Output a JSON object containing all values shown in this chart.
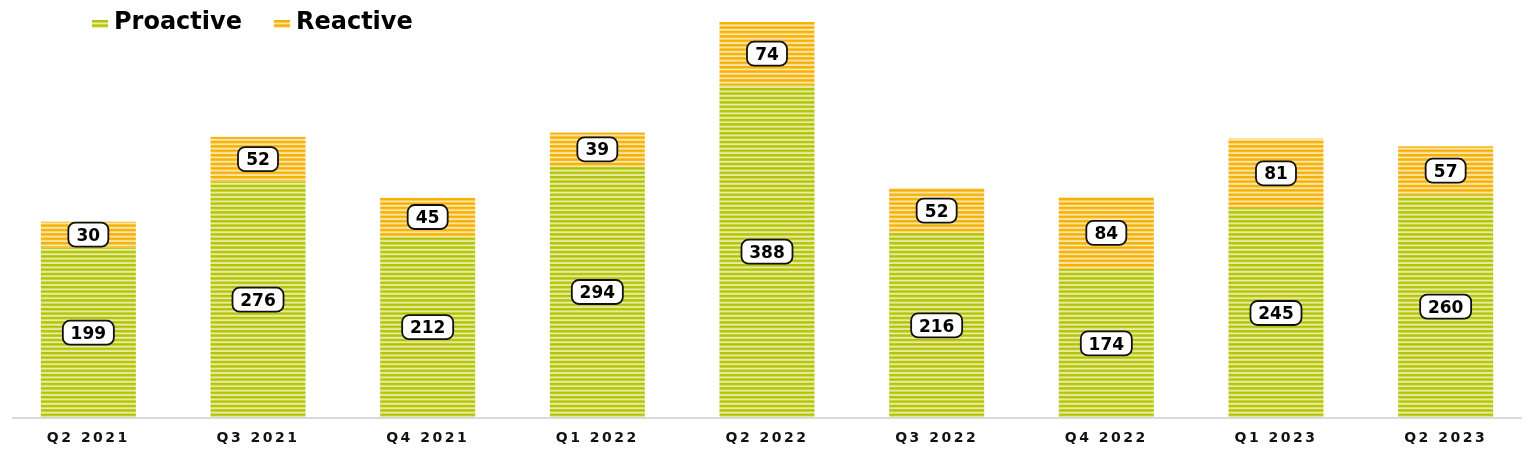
{
  "chart_data": {
    "type": "bar",
    "stacked": true,
    "data_labels": true,
    "legend": "top left",
    "categories": [
      "Q2 2021",
      "Q3 2021",
      "Q4 2021",
      "Q1 2022",
      "Q2 2022",
      "Q3 2022",
      "Q4 2022",
      "Q1 2023",
      "Q2 2023"
    ],
    "series": [
      {
        "name": "Proactive",
        "color": "#b5c400",
        "values": [
          199,
          276,
          212,
          294,
          388,
          216,
          174,
          245,
          260
        ]
      },
      {
        "name": "Reactive",
        "color": "#f5b000",
        "values": [
          30,
          52,
          45,
          39,
          74,
          52,
          84,
          81,
          57
        ]
      }
    ]
  }
}
